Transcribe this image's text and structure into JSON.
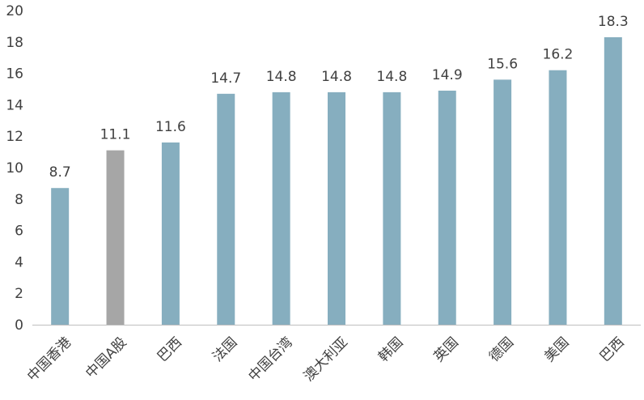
{
  "chart_data": {
    "type": "bar",
    "categories": [
      "中国香港",
      "中国A股",
      "巴西",
      "法国",
      "中国台湾",
      "澳大利亚",
      "韩国",
      "英国",
      "德国",
      "美国",
      "巴西"
    ],
    "values": [
      8.7,
      11.1,
      11.6,
      14.7,
      14.8,
      14.8,
      14.8,
      14.9,
      15.6,
      16.2,
      18.3
    ],
    "data_labels": [
      "8.7",
      "11.1",
      "11.6",
      "14.7",
      "14.8",
      "14.8",
      "14.8",
      "14.9",
      "15.6",
      "16.2",
      "18.3"
    ],
    "yticks": [
      "0",
      "2",
      "4",
      "6",
      "8",
      "10",
      "12",
      "14",
      "16",
      "18",
      "20"
    ],
    "ylim": [
      0,
      20
    ],
    "grid": false,
    "legend": "none",
    "colors": {
      "default_bar": "#86AEBF",
      "highlight_bar": "#A6A6A6",
      "axis": "#BFBFBF",
      "text": "#404040"
    },
    "highlight_index": 1
  }
}
